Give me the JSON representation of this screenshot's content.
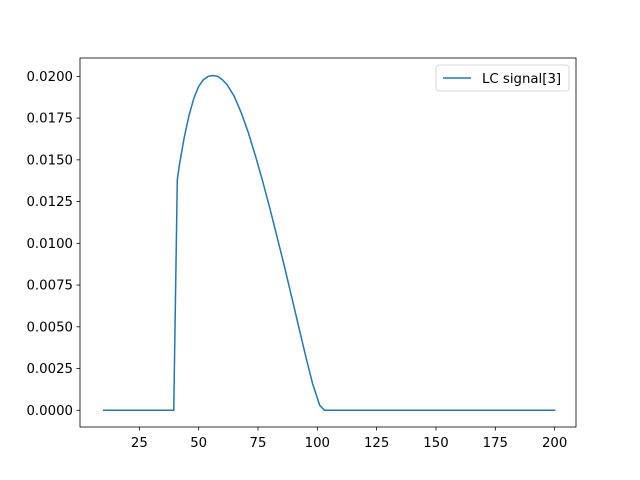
{
  "chart_data": {
    "type": "line",
    "title": "",
    "xlabel": "",
    "ylabel": "",
    "xlim": [
      0,
      209
    ],
    "ylim": [
      -0.001,
      0.0211
    ],
    "x_ticks": [
      25,
      50,
      75,
      100,
      125,
      150,
      175,
      200
    ],
    "y_ticks": [
      0.0,
      0.0025,
      0.005,
      0.0075,
      0.01,
      0.0125,
      0.015,
      0.0175,
      0.02
    ],
    "x_tick_labels": [
      "25",
      "50",
      "75",
      "100",
      "125",
      "150",
      "175",
      "200"
    ],
    "y_tick_labels": [
      "0.0000",
      "0.0025",
      "0.0050",
      "0.0075",
      "0.0100",
      "0.0125",
      "0.0150",
      "0.0175",
      "0.0200"
    ],
    "legend_position": "top-right",
    "grid": false,
    "series": [
      {
        "name": "LC signal[3]",
        "color": "#1f77b4",
        "x": [
          10,
          20,
          30,
          39.5,
          41,
          42,
          44,
          46,
          48,
          50,
          52,
          54,
          56,
          58,
          60,
          62,
          65,
          68,
          71,
          74,
          77,
          80,
          83,
          86,
          89,
          92,
          95,
          98,
          101,
          103,
          104,
          110,
          120,
          130,
          140,
          150,
          160,
          170,
          180,
          190,
          200
        ],
        "y": [
          0.0,
          0.0,
          0.0,
          0.0,
          0.0138,
          0.0148,
          0.0164,
          0.0177,
          0.0187,
          0.0194,
          0.0198,
          0.02,
          0.02005,
          0.02,
          0.0198,
          0.0195,
          0.0188,
          0.0178,
          0.0166,
          0.0152,
          0.0137,
          0.0121,
          0.0104,
          0.0087,
          0.0069,
          0.0051,
          0.0033,
          0.0016,
          0.0003,
          0.0,
          0.0,
          0.0,
          0.0,
          0.0,
          0.0,
          0.0,
          0.0,
          0.0,
          0.0,
          0.0,
          0.0
        ]
      }
    ]
  }
}
